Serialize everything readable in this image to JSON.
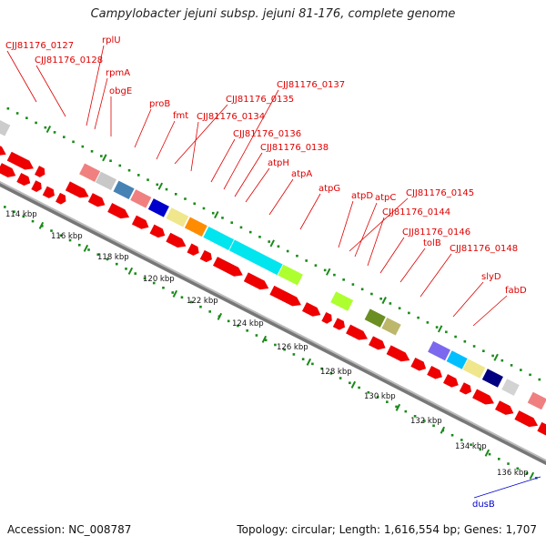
{
  "title": "Campylobacter jejuni subsp. jejuni 81-176, complete genome",
  "footer": {
    "accession": "Accession: NC_008787",
    "info": "Topology: circular; Length: 1,616,554 bp; Genes: 1,707"
  },
  "colors": {
    "cds": "#ee0000",
    "backbone": "#999999",
    "tick": "#1a8a1a",
    "label": "#e00000",
    "label_blue": "#0000cc"
  },
  "kbp_ticks": [
    "114 kbp",
    "116 kbp",
    "118 kbp",
    "120 kbp",
    "122 kbp",
    "124 kbp",
    "126 kbp",
    "128 kbp",
    "130 kbp",
    "132 kbp",
    "134 kbp",
    "136 kbp"
  ],
  "gene_labels": [
    {
      "name": "CJJ81176_0127",
      "color": "red"
    },
    {
      "name": "CJJ81176_0128",
      "color": "red"
    },
    {
      "name": "rplU",
      "color": "red"
    },
    {
      "name": "rpmA",
      "color": "red"
    },
    {
      "name": "obgE",
      "color": "red"
    },
    {
      "name": "proB",
      "color": "red"
    },
    {
      "name": "fmt",
      "color": "red"
    },
    {
      "name": "CJJ81176_0134",
      "color": "red"
    },
    {
      "name": "CJJ81176_0135",
      "color": "red"
    },
    {
      "name": "CJJ81176_0136",
      "color": "red"
    },
    {
      "name": "CJJ81176_0137",
      "color": "red"
    },
    {
      "name": "CJJ81176_0138",
      "color": "red"
    },
    {
      "name": "atpH",
      "color": "red"
    },
    {
      "name": "atpA",
      "color": "red"
    },
    {
      "name": "atpG",
      "color": "red"
    },
    {
      "name": "atpD",
      "color": "red"
    },
    {
      "name": "atpC",
      "color": "red"
    },
    {
      "name": "CJJ81176_0144",
      "color": "red"
    },
    {
      "name": "CJJ81176_0145",
      "color": "red"
    },
    {
      "name": "CJJ81176_0146",
      "color": "red"
    },
    {
      "name": "tolB",
      "color": "red"
    },
    {
      "name": "CJJ81176_0148",
      "color": "red"
    },
    {
      "name": "slyD",
      "color": "red"
    },
    {
      "name": "fabD",
      "color": "red"
    },
    {
      "name": "dusB",
      "color": "blue"
    }
  ],
  "cog_blocks": [
    {
      "color": "#cccccc"
    },
    {
      "color": "#f08080"
    },
    {
      "color": "#c8c8c8"
    },
    {
      "color": "#4682b4"
    },
    {
      "color": "#f08080"
    },
    {
      "color": "#0000cd"
    },
    {
      "color": "#f0e68c"
    },
    {
      "color": "#ff8c00"
    },
    {
      "color": "#00e5ee"
    },
    {
      "color": "#00e5ee"
    },
    {
      "color": "#adff2f"
    },
    {
      "color": "#adff2f"
    },
    {
      "color": "#6b8e23"
    },
    {
      "color": "#bdb76b"
    },
    {
      "color": "#7b68ee"
    },
    {
      "color": "#00bfff"
    },
    {
      "color": "#f0e68c"
    },
    {
      "color": "#000080"
    },
    {
      "color": "#d3d3d3"
    },
    {
      "color": "#f08080"
    }
  ]
}
